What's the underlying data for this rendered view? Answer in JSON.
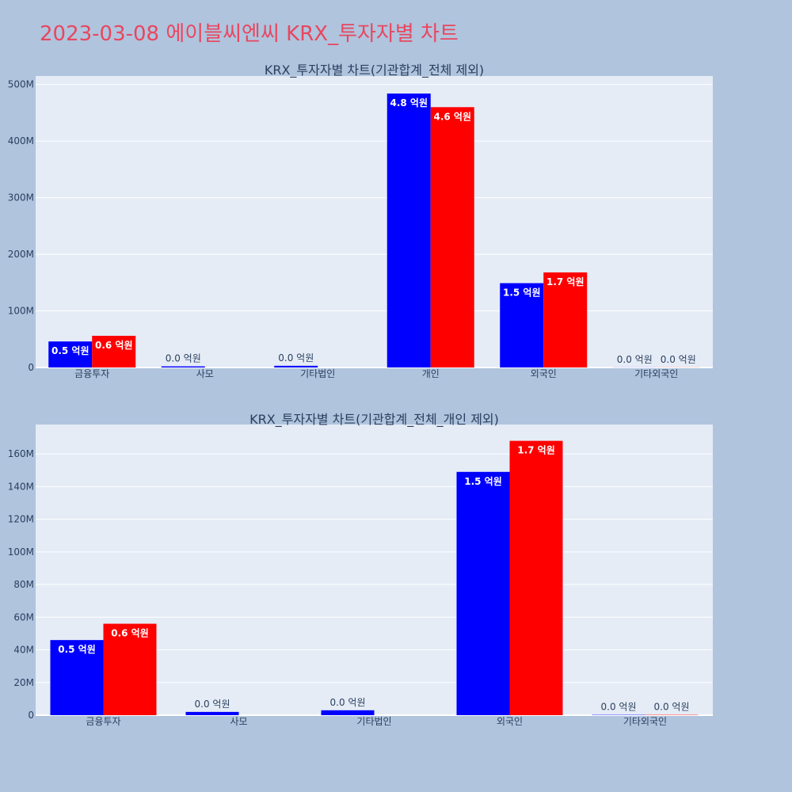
{
  "page": {
    "title": "2023-03-08 에이블씨엔씨 KRX_투자자별 차트",
    "title_color": "#e8475f",
    "background": "#b0c4de",
    "plot_background": "#e5ecf6"
  },
  "chart_data": [
    {
      "type": "bar",
      "title": "KRX_투자자별 차트(기관합계_전체 제외)",
      "categories": [
        "금융투자",
        "사모",
        "기타법인",
        "개인",
        "외국인",
        "기타외국인"
      ],
      "series": [
        {
          "color": "#0000ff",
          "values": [
            46000000,
            2000000,
            3000000,
            484000000,
            149000000,
            200000
          ],
          "labels": [
            "0.5 억원",
            "0.0 억원",
            "0.0 억원",
            "4.8 억원",
            "1.5 억원",
            "0.0 억원"
          ]
        },
        {
          "color": "#ff0000",
          "values": [
            56000000,
            0,
            0,
            460000000,
            168000000,
            200000
          ],
          "labels": [
            "0.6 억원",
            "",
            "",
            "4.6 억원",
            "1.7 억원",
            "0.0 억원"
          ]
        }
      ],
      "ylim": [
        0,
        515000000
      ],
      "yticks": [
        0,
        100000000,
        200000000,
        300000000,
        400000000,
        500000000
      ],
      "ytick_labels": [
        "0",
        "100M",
        "200M",
        "300M",
        "400M",
        "500M"
      ],
      "grid": true,
      "legend": "none"
    },
    {
      "type": "bar",
      "title": "KRX_투자자별 차트(기관합계_전체_개인 제외)",
      "categories": [
        "금융투자",
        "사모",
        "기타법인",
        "외국인",
        "기타외국인"
      ],
      "series": [
        {
          "color": "#0000ff",
          "values": [
            46000000,
            2000000,
            3000000,
            149000000,
            200000
          ],
          "labels": [
            "0.5 억원",
            "0.0 억원",
            "0.0 억원",
            "1.5 억원",
            "0.0 억원"
          ]
        },
        {
          "color": "#ff0000",
          "values": [
            56000000,
            0,
            0,
            168000000,
            200000
          ],
          "labels": [
            "0.6 억원",
            "",
            "",
            "1.7 억원",
            "0.0 억원"
          ]
        }
      ],
      "ylim": [
        0,
        178000000
      ],
      "yticks": [
        0,
        20000000,
        40000000,
        60000000,
        80000000,
        100000000,
        120000000,
        140000000,
        160000000
      ],
      "ytick_labels": [
        "0",
        "20M",
        "40M",
        "60M",
        "80M",
        "100M",
        "120M",
        "140M",
        "160M"
      ],
      "grid": true,
      "legend": "none"
    }
  ]
}
